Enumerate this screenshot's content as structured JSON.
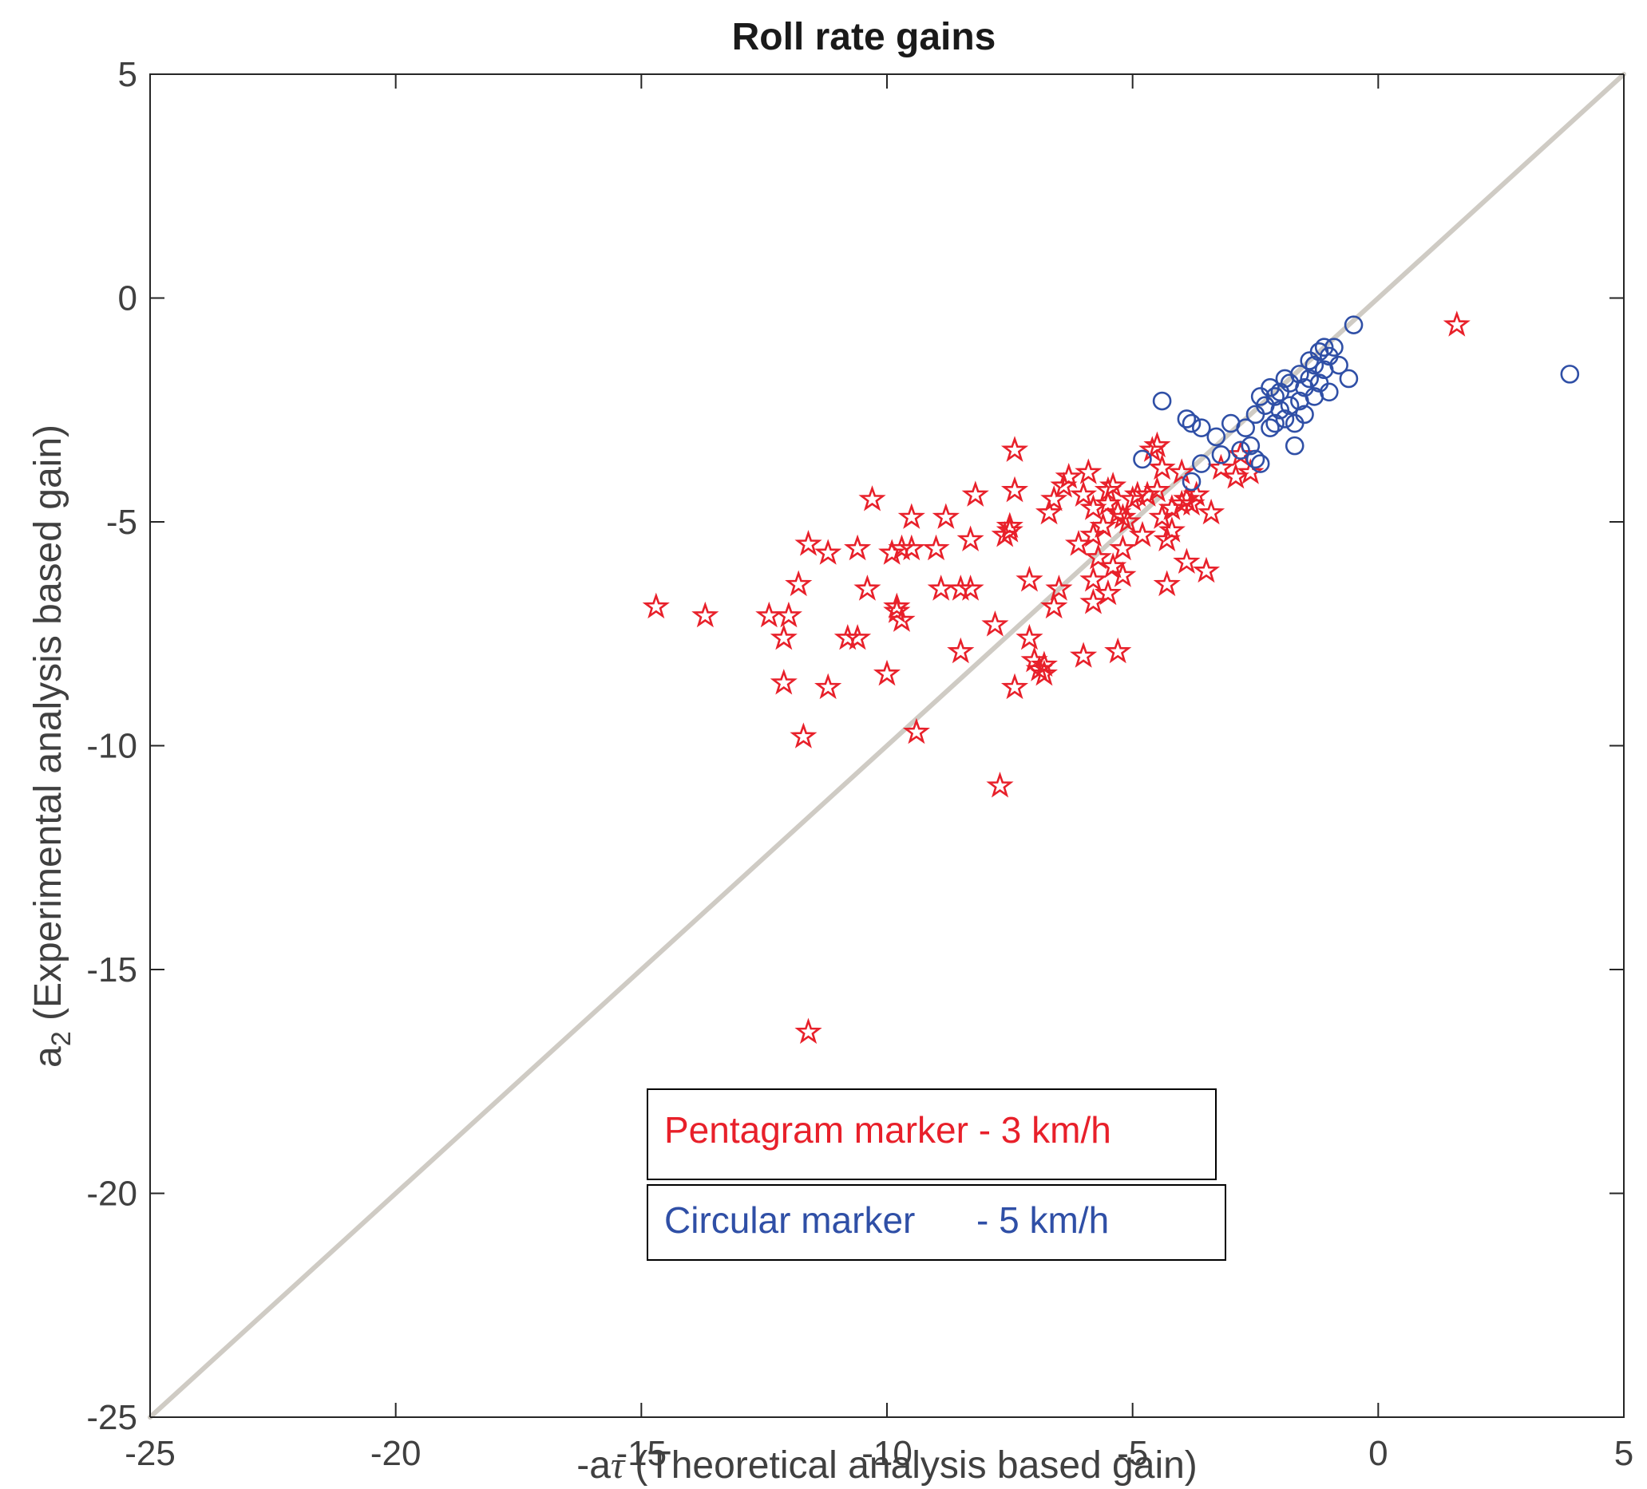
{
  "chart_data": {
    "type": "scatter",
    "title": "Roll rate gains",
    "xlabel_prefix": "-a",
    "xlabel_symbol": "τ",
    "xlabel_rest": " (Theoretical analysis based gain)",
    "ylabel_main": "a",
    "ylabel_sub": "2",
    "ylabel_rest": " (Experimental analysis based gain)",
    "xlim": [
      -25,
      5
    ],
    "ylim": [
      -25,
      5
    ],
    "xticks": [
      -25,
      -20,
      -15,
      -10,
      -5,
      0,
      5
    ],
    "yticks": [
      -25,
      -20,
      -15,
      -10,
      -5,
      0,
      5
    ],
    "xtick_labels": [
      "-25",
      "-20",
      "-15",
      "-10",
      "-5",
      "0",
      "5"
    ],
    "ytick_labels": [
      "-25",
      "-20",
      "-15",
      "-10",
      "-5",
      "0",
      "5"
    ],
    "grid": false,
    "reference_line": {
      "name": "y = x",
      "x": [
        -25,
        5
      ],
      "y": [
        -25,
        5
      ],
      "color": "#cfcbc4"
    },
    "legend": [
      {
        "label": "Pentagram marker - 3 km/h",
        "color": "#e8202a"
      },
      {
        "label": "Circular marker      - 5 km/h",
        "color": "#2f4fa6"
      }
    ],
    "series": [
      {
        "name": "Pentagram marker - 3 km/h",
        "marker": "pentagram",
        "color": "#e8202a",
        "points": [
          [
            -14.7,
            -6.9
          ],
          [
            -13.7,
            -7.1
          ],
          [
            -12.4,
            -7.1
          ],
          [
            -12.1,
            -7.6
          ],
          [
            -12.0,
            -7.1
          ],
          [
            -12.1,
            -8.6
          ],
          [
            -11.8,
            -6.4
          ],
          [
            -11.7,
            -9.8
          ],
          [
            -11.6,
            -5.5
          ],
          [
            -11.6,
            -16.4
          ],
          [
            -11.2,
            -5.7
          ],
          [
            -11.2,
            -8.7
          ],
          [
            -10.8,
            -7.6
          ],
          [
            -10.6,
            -5.6
          ],
          [
            -10.6,
            -7.6
          ],
          [
            -10.4,
            -6.5
          ],
          [
            -10.3,
            -4.5
          ],
          [
            -10.0,
            -8.4
          ],
          [
            -9.9,
            -5.7
          ],
          [
            -9.8,
            -6.9
          ],
          [
            -9.8,
            -7.0
          ],
          [
            -9.7,
            -7.2
          ],
          [
            -9.7,
            -5.6
          ],
          [
            -9.5,
            -5.6
          ],
          [
            -9.5,
            -4.9
          ],
          [
            -9.4,
            -9.7
          ],
          [
            -9.0,
            -5.6
          ],
          [
            -8.9,
            -6.5
          ],
          [
            -8.8,
            -4.9
          ],
          [
            -8.5,
            -7.9
          ],
          [
            -8.5,
            -6.5
          ],
          [
            -8.3,
            -6.5
          ],
          [
            -8.3,
            -5.4
          ],
          [
            -8.2,
            -4.4
          ],
          [
            -7.8,
            -7.3
          ],
          [
            -7.7,
            -10.9
          ],
          [
            -7.6,
            -5.3
          ],
          [
            -7.5,
            -5.2
          ],
          [
            -7.5,
            -5.1
          ],
          [
            -7.4,
            -3.4
          ],
          [
            -7.4,
            -8.7
          ],
          [
            -7.4,
            -4.3
          ],
          [
            -7.1,
            -6.3
          ],
          [
            -7.1,
            -7.6
          ],
          [
            -7.0,
            -8.1
          ],
          [
            -6.9,
            -8.3
          ],
          [
            -6.8,
            -8.4
          ],
          [
            -6.8,
            -8.2
          ],
          [
            -6.7,
            -4.8
          ],
          [
            -6.6,
            -4.5
          ],
          [
            -6.6,
            -6.9
          ],
          [
            -6.5,
            -6.5
          ],
          [
            -6.4,
            -4.2
          ],
          [
            -6.3,
            -4.0
          ],
          [
            -6.1,
            -5.5
          ],
          [
            -6.0,
            -4.4
          ],
          [
            -6.0,
            -8.0
          ],
          [
            -5.9,
            -3.9
          ],
          [
            -5.8,
            -6.3
          ],
          [
            -5.8,
            -5.3
          ],
          [
            -5.8,
            -6.8
          ],
          [
            -5.8,
            -4.7
          ],
          [
            -5.7,
            -5.8
          ],
          [
            -5.6,
            -5.1
          ],
          [
            -5.5,
            -4.3
          ],
          [
            -5.5,
            -6.6
          ],
          [
            -5.5,
            -4.6
          ],
          [
            -5.4,
            -6.0
          ],
          [
            -5.4,
            -4.2
          ],
          [
            -5.3,
            -4.8
          ],
          [
            -5.3,
            -7.9
          ],
          [
            -5.2,
            -5.6
          ],
          [
            -5.2,
            -6.2
          ],
          [
            -5.2,
            -4.9
          ],
          [
            -5.1,
            -5.0
          ],
          [
            -5.0,
            -4.5
          ],
          [
            -4.9,
            -4.4
          ],
          [
            -4.8,
            -5.3
          ],
          [
            -4.7,
            -4.4
          ],
          [
            -4.6,
            -3.4
          ],
          [
            -4.5,
            -3.3
          ],
          [
            -4.5,
            -4.3
          ],
          [
            -4.4,
            -3.8
          ],
          [
            -4.4,
            -4.9
          ],
          [
            -4.3,
            -6.4
          ],
          [
            -4.3,
            -5.4
          ],
          [
            -4.2,
            -5.2
          ],
          [
            -4.2,
            -4.7
          ],
          [
            -4.0,
            -4.6
          ],
          [
            -4.0,
            -3.9
          ],
          [
            -3.9,
            -5.9
          ],
          [
            -3.9,
            -4.5
          ],
          [
            -3.8,
            -4.6
          ],
          [
            -3.7,
            -4.4
          ],
          [
            -3.5,
            -6.1
          ],
          [
            -3.4,
            -4.8
          ],
          [
            -3.2,
            -3.8
          ],
          [
            -2.9,
            -4.0
          ],
          [
            -2.8,
            -3.5
          ],
          [
            -2.6,
            -3.9
          ],
          [
            1.6,
            -0.6
          ]
        ]
      },
      {
        "name": "Circular marker      - 5 km/h",
        "marker": "circle",
        "color": "#2f4fa6",
        "points": [
          [
            3.9,
            -1.7
          ],
          [
            -0.5,
            -0.6
          ],
          [
            -0.6,
            -1.8
          ],
          [
            -0.8,
            -1.5
          ],
          [
            -0.9,
            -1.1
          ],
          [
            -1.0,
            -1.3
          ],
          [
            -1.0,
            -2.1
          ],
          [
            -1.1,
            -1.1
          ],
          [
            -1.1,
            -1.6
          ],
          [
            -1.2,
            -1.2
          ],
          [
            -1.2,
            -1.9
          ],
          [
            -1.3,
            -1.5
          ],
          [
            -1.3,
            -2.2
          ],
          [
            -1.4,
            -1.4
          ],
          [
            -1.4,
            -1.8
          ],
          [
            -1.5,
            -2.0
          ],
          [
            -1.5,
            -2.6
          ],
          [
            -1.6,
            -1.7
          ],
          [
            -1.6,
            -2.3
          ],
          [
            -1.7,
            -3.3
          ],
          [
            -1.7,
            -2.8
          ],
          [
            -1.8,
            -1.9
          ],
          [
            -1.8,
            -2.4
          ],
          [
            -1.9,
            -1.8
          ],
          [
            -1.9,
            -2.7
          ],
          [
            -2.0,
            -2.1
          ],
          [
            -2.0,
            -2.5
          ],
          [
            -2.1,
            -2.2
          ],
          [
            -2.1,
            -2.8
          ],
          [
            -2.2,
            -2.0
          ],
          [
            -2.2,
            -2.9
          ],
          [
            -2.3,
            -2.4
          ],
          [
            -2.4,
            -3.7
          ],
          [
            -2.4,
            -2.2
          ],
          [
            -2.5,
            -3.6
          ],
          [
            -2.5,
            -2.6
          ],
          [
            -2.6,
            -3.3
          ],
          [
            -2.7,
            -2.9
          ],
          [
            -2.8,
            -3.4
          ],
          [
            -3.0,
            -2.8
          ],
          [
            -3.2,
            -3.5
          ],
          [
            -3.3,
            -3.1
          ],
          [
            -3.9,
            -2.7
          ],
          [
            -3.8,
            -2.8
          ],
          [
            -3.6,
            -2.9
          ],
          [
            -3.6,
            -3.7
          ],
          [
            -3.8,
            -4.1
          ],
          [
            -4.4,
            -2.3
          ],
          [
            -4.8,
            -3.6
          ]
        ]
      }
    ]
  }
}
